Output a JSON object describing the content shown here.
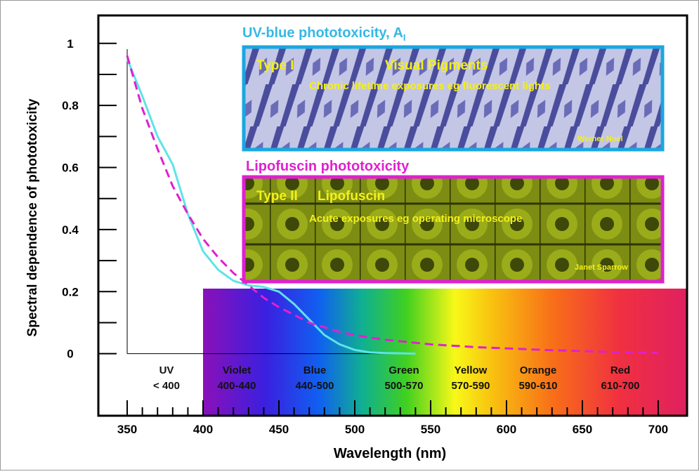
{
  "chart_data": {
    "type": "line",
    "x_label": "Wavelength (nm)",
    "y_label": "Spectral dependence of phototoxicity",
    "x": [
      350,
      360,
      370,
      380,
      390,
      400,
      410,
      420,
      430,
      440,
      450,
      460,
      470,
      480,
      490,
      500,
      510,
      520,
      530,
      540,
      550,
      560,
      570,
      580,
      590,
      600,
      610,
      620,
      630,
      640,
      650,
      660,
      670,
      680,
      690,
      700
    ],
    "series": [
      {
        "color": "#5fe3e6",
        "style": "solid",
        "values": [
          0.95,
          0.83,
          0.7,
          0.61,
          0.45,
          0.33,
          0.27,
          0.235,
          0.22,
          0.215,
          0.2,
          0.16,
          0.11,
          0.06,
          0.03,
          0.012,
          0.004,
          0.002,
          0.001,
          0,
          null,
          null,
          null,
          null,
          null,
          null,
          null,
          null,
          null,
          null,
          null,
          null,
          null,
          null,
          null,
          null
        ]
      },
      {
        "color": "#e020d0",
        "style": "dashed",
        "values": [
          0.96,
          0.79,
          0.66,
          0.54,
          0.45,
          0.37,
          0.31,
          0.26,
          0.22,
          0.18,
          0.15,
          0.125,
          0.1,
          0.085,
          0.07,
          0.06,
          0.052,
          0.045,
          0.04,
          0.035,
          0.03,
          0.027,
          0.024,
          0.021,
          0.019,
          0.017,
          0.015,
          0.013,
          0.011,
          0.01,
          0.008,
          0.007,
          0.005,
          0.004,
          0.003,
          0.002
        ]
      }
    ],
    "xlim": [
      331,
      719
    ],
    "ylim": [
      -0.2,
      1.09
    ],
    "xticks": [
      350,
      400,
      450,
      500,
      550,
      600,
      650,
      700
    ],
    "xminorticks": [
      360,
      370,
      380,
      390,
      410,
      420,
      430,
      440,
      460,
      470,
      480,
      490,
      510,
      520,
      530,
      540,
      560,
      570,
      580,
      590,
      610,
      620,
      630,
      640,
      660,
      670,
      680,
      690
    ],
    "yticks": [
      0,
      0.2,
      0.4,
      0.6,
      0.8,
      1
    ],
    "yminorticks": [
      0.1,
      0.3,
      0.5,
      0.7,
      0.9
    ],
    "spectrum_start": 400,
    "spectrum_bands": [
      {
        "name": "UV",
        "range": "< 400"
      },
      {
        "name": "Violet",
        "range": "400-440"
      },
      {
        "name": "Blue",
        "range": "440-500"
      },
      {
        "name": "Green",
        "range": "500-570"
      },
      {
        "name": "Yellow",
        "range": "570-590"
      },
      {
        "name": "Orange",
        "range": "590-610"
      },
      {
        "name": "Red",
        "range": "610-700"
      }
    ],
    "panels": [
      {
        "title": "UV-blue phototoxicity, A",
        "title_subscript": "I",
        "type_label": "Type I",
        "pigment": "Visual Pigments",
        "note": "Chronic lifetime exposures eg fluorescent lights",
        "credit": "Werner Noel"
      },
      {
        "title": "Lipofuscin phototoxicity",
        "type_label": "Type II",
        "pigment": "Lipofuscin",
        "note": "Acute exposures eg operating microscope",
        "credit": "Janet Sparrow"
      }
    ]
  }
}
